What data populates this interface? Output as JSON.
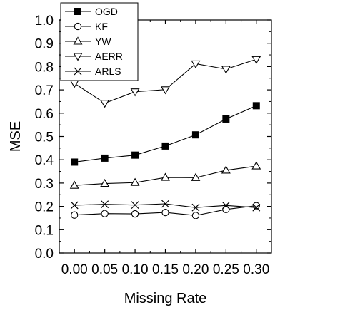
{
  "chart_data": {
    "type": "line",
    "xlabel": "Missing Rate",
    "ylabel": "MSE",
    "xlim": [
      -0.025,
      0.325
    ],
    "ylim": [
      0.0,
      1.0
    ],
    "x": [
      0.0,
      0.05,
      0.1,
      0.15,
      0.2,
      0.25,
      0.3
    ],
    "x_tick_labels": [
      "0.00",
      "0.05",
      "0.10",
      "0.15",
      "0.20",
      "0.25",
      "0.30"
    ],
    "y_ticks": [
      0.0,
      0.1,
      0.2,
      0.3,
      0.4,
      0.5,
      0.6,
      0.7,
      0.8,
      0.9,
      1.0
    ],
    "y_tick_labels": [
      "0.0",
      "0.1",
      "0.2",
      "0.3",
      "0.4",
      "0.5",
      "0.6",
      "0.7",
      "0.8",
      "0.9",
      "1.0"
    ],
    "grid": false,
    "legend_position": "top-left",
    "series": [
      {
        "name": "OGD",
        "marker": "filled-square",
        "color": "#000000",
        "values": [
          0.39,
          0.407,
          0.42,
          0.459,
          0.507,
          0.575,
          0.632
        ]
      },
      {
        "name": "KF",
        "marker": "open-circle",
        "color": "#000000",
        "values": [
          0.163,
          0.169,
          0.168,
          0.174,
          0.161,
          0.187,
          0.203
        ]
      },
      {
        "name": "YW",
        "marker": "open-triangle-up",
        "color": "#000000",
        "values": [
          0.29,
          0.298,
          0.302,
          0.324,
          0.323,
          0.355,
          0.373
        ]
      },
      {
        "name": "AERR",
        "marker": "open-triangle-down",
        "color": "#000000",
        "values": [
          0.728,
          0.643,
          0.692,
          0.701,
          0.812,
          0.789,
          0.831
        ]
      },
      {
        "name": "ARLS",
        "marker": "cross",
        "color": "#000000",
        "values": [
          0.205,
          0.209,
          0.206,
          0.211,
          0.195,
          0.204,
          0.195
        ]
      }
    ]
  }
}
